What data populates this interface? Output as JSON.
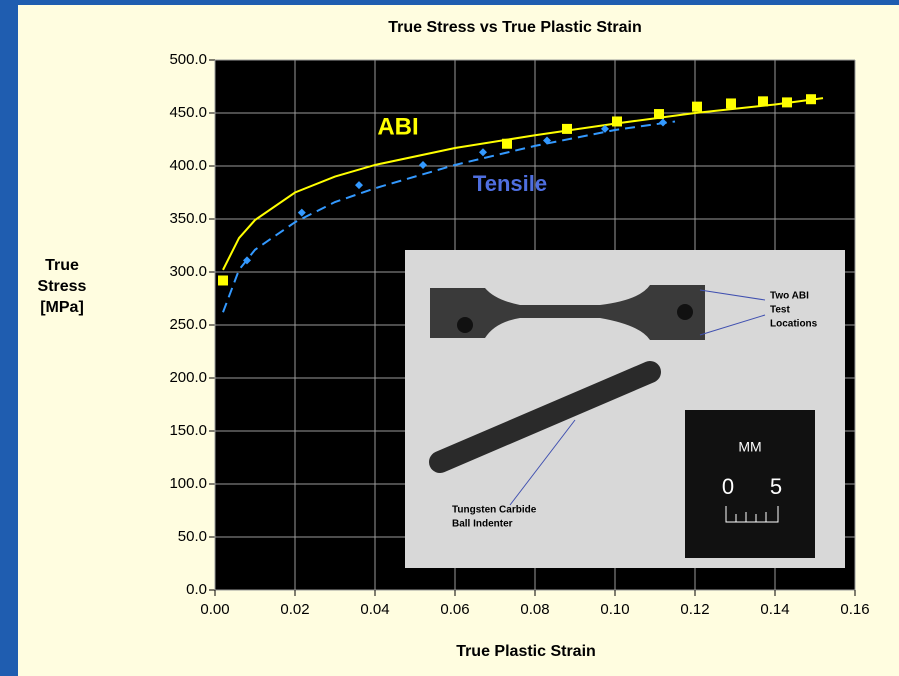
{
  "chart_data": {
    "type": "scatter",
    "title": "True Stress vs True Plastic Strain",
    "x_label": "True Plastic Strain",
    "y_label": [
      "True",
      "Stress",
      "[MPa]"
    ],
    "xlim": [
      0,
      0.16
    ],
    "ylim": [
      0,
      500
    ],
    "xticks": [
      {
        "value": 0,
        "label": "0.00"
      },
      {
        "value": 0.02,
        "label": "0.02"
      },
      {
        "value": 0.04,
        "label": "0.04"
      },
      {
        "value": 0.06,
        "label": "0.06"
      },
      {
        "value": 0.08,
        "label": "0.08"
      },
      {
        "value": 0.1,
        "label": "0.10"
      },
      {
        "value": 0.12,
        "label": "0.12"
      },
      {
        "value": 0.14,
        "label": "0.14"
      },
      {
        "value": 0.16,
        "label": "0.16"
      }
    ],
    "yticks": [
      {
        "value": 0,
        "label": "0.0"
      },
      {
        "value": 50,
        "label": "50.0"
      },
      {
        "value": 100,
        "label": "100.0"
      },
      {
        "value": 150,
        "label": "150.0"
      },
      {
        "value": 200,
        "label": "200.0"
      },
      {
        "value": 250,
        "label": "250.0"
      },
      {
        "value": 300,
        "label": "300.0"
      },
      {
        "value": 350,
        "label": "350.0"
      },
      {
        "value": 400,
        "label": "400.0"
      },
      {
        "value": 450,
        "label": "450.0"
      },
      {
        "value": 500,
        "label": "500.0"
      }
    ],
    "grid": true,
    "series": [
      {
        "name": "ABI",
        "color": "#ffff00",
        "marker": "square",
        "dash": false,
        "x": [
          0.002,
          0.073,
          0.088,
          0.1005,
          0.111,
          0.1205,
          0.129,
          0.137,
          0.143,
          0.149
        ],
        "values": [
          292,
          421,
          435,
          442,
          449,
          456,
          459,
          461,
          460,
          463
        ],
        "fit": {
          "x": [
            0.002,
            0.006,
            0.01,
            0.02,
            0.03,
            0.04,
            0.06,
            0.08,
            0.1,
            0.12,
            0.14,
            0.152
          ],
          "values": [
            302,
            332,
            349,
            375,
            390,
            401,
            417,
            429,
            440,
            450,
            458,
            464
          ]
        }
      },
      {
        "name": "Tensile",
        "color": "#3399ff",
        "marker": "diamond",
        "dash": true,
        "x": [
          0.008,
          0.0217,
          0.036,
          0.052,
          0.067,
          0.083,
          0.0975,
          0.112
        ],
        "values": [
          311,
          356,
          382,
          401,
          413,
          424,
          435,
          441
        ],
        "fit": {
          "x": [
            0.002,
            0.006,
            0.01,
            0.02,
            0.03,
            0.04,
            0.06,
            0.08,
            0.1,
            0.115
          ],
          "values": [
            262,
            302,
            321,
            347,
            366,
            379,
            401,
            419,
            434,
            442
          ]
        }
      }
    ],
    "inset": {
      "specimen_label": [
        "Two ABI",
        "Test",
        "Locations"
      ],
      "indenter_label": [
        "Tungsten Carbide",
        "Ball Indenter"
      ],
      "scale_unit": "MM",
      "scale_ticks": [
        "0",
        "5"
      ]
    }
  }
}
